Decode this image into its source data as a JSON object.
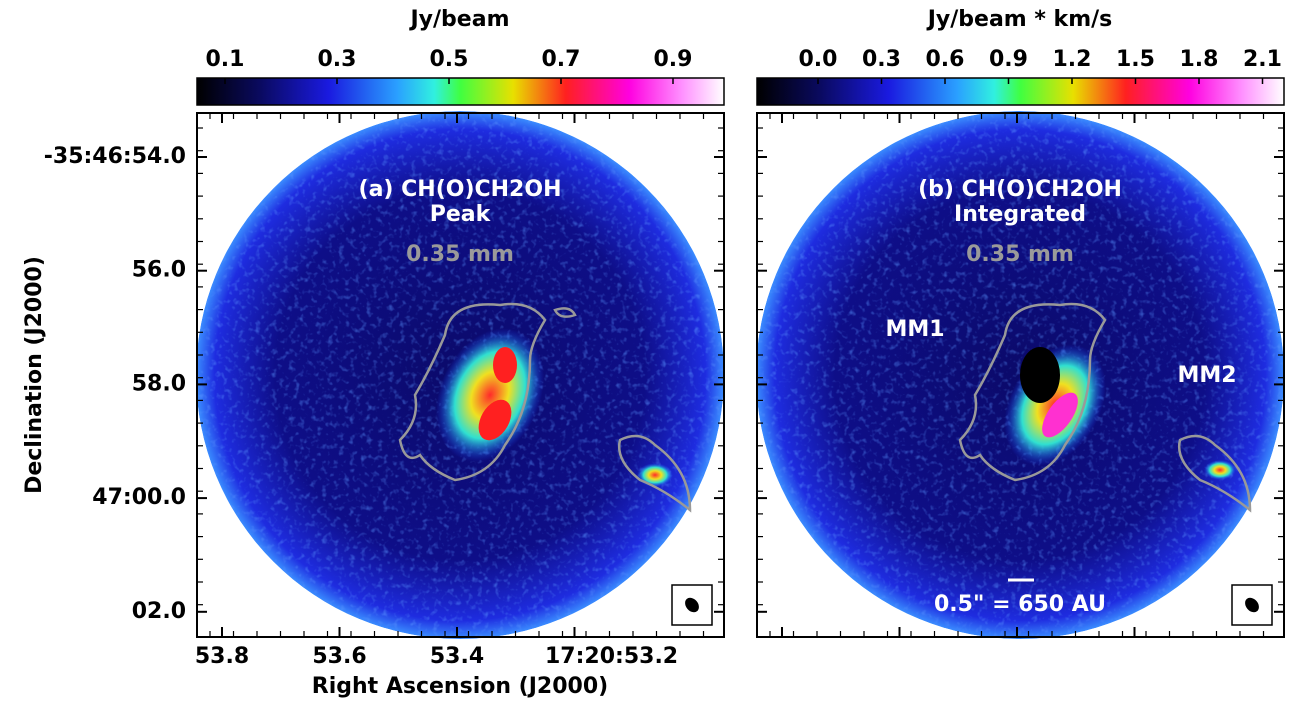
{
  "panels": [
    {
      "colorbar": {
        "label": "Jy/beam",
        "ticks": [
          "0.1",
          "0.3",
          "0.5",
          "0.7",
          "0.9"
        ]
      },
      "title": "(a) CH(O)CH2OH",
      "subtitle": "Peak",
      "wavelength": "0.35 mm"
    },
    {
      "colorbar": {
        "label": "Jy/beam * km/s",
        "ticks": [
          "0.0",
          "0.3",
          "0.6",
          "0.9",
          "1.2",
          "1.5",
          "1.8",
          "2.1"
        ]
      },
      "title": "(b) CH(O)CH2OH",
      "subtitle": "Integrated",
      "wavelength": "0.35 mm",
      "source_labels": [
        "MM1",
        "MM2"
      ],
      "scale_bar": "0.5\" = 650 AU"
    }
  ],
  "y_axis": {
    "label": "Declination (J2000)",
    "ticks": [
      "-35:46:54.0",
      "56.0",
      "58.0",
      "47:00.0",
      "02.0"
    ]
  },
  "x_axis": {
    "label": "Right Ascension (J2000)",
    "ticks": [
      "53.8",
      "53.6",
      "53.4",
      "17:20:53.2"
    ]
  }
}
